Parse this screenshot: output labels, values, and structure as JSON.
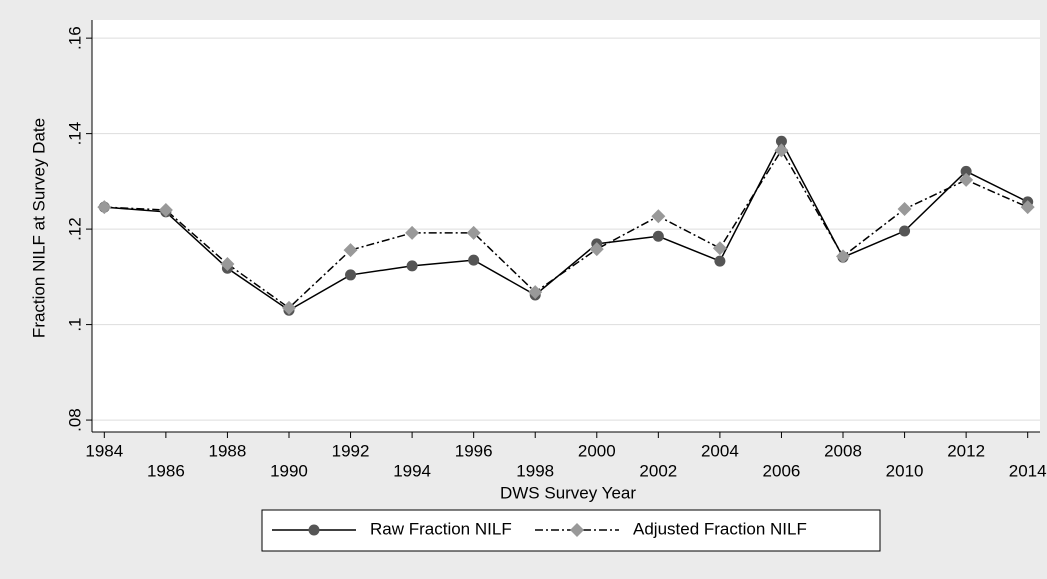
{
  "chart_data": {
    "type": "line",
    "x": [
      1984,
      1986,
      1988,
      1990,
      1992,
      1994,
      1996,
      1998,
      2000,
      2002,
      2004,
      2006,
      2008,
      2010,
      2012,
      2014
    ],
    "series": [
      {
        "name": "Raw Fraction NILF",
        "color": "#555555",
        "marker": "circle",
        "values": [
          0.1246,
          0.1236,
          0.1118,
          0.103,
          0.1104,
          0.1123,
          0.1135,
          0.1062,
          0.1169,
          0.1185,
          0.1133,
          0.1384,
          0.1141,
          0.1196,
          0.1321,
          0.1257
        ]
      },
      {
        "name": "Adjusted Fraction NILF",
        "color": "#999999",
        "marker": "diamond",
        "values": [
          0.1246,
          0.124,
          0.1127,
          0.1035,
          0.1156,
          0.1192,
          0.1192,
          0.1068,
          0.1158,
          0.1227,
          0.116,
          0.1365,
          0.1143,
          0.1242,
          0.1303,
          0.1246
        ]
      }
    ],
    "xlabel": "DWS Survey Year",
    "ylabel": "Fraction NILF at Survey Date",
    "xlim": [
      1983.6,
      2014.4
    ],
    "xticks": [
      1984,
      1986,
      1988,
      1990,
      1992,
      1994,
      1996,
      1998,
      2000,
      2002,
      2004,
      2006,
      2008,
      2010,
      2012,
      2014
    ],
    "ylim": [
      0.0775,
      0.1638
    ],
    "yticks": [
      {
        "value": 0.08,
        "label": ".08"
      },
      {
        "value": 0.1,
        "label": ".1"
      },
      {
        "value": 0.12,
        "label": ".12"
      },
      {
        "value": 0.14,
        "label": ".14"
      },
      {
        "value": 0.16,
        "label": ".16"
      }
    ],
    "grid": true
  }
}
